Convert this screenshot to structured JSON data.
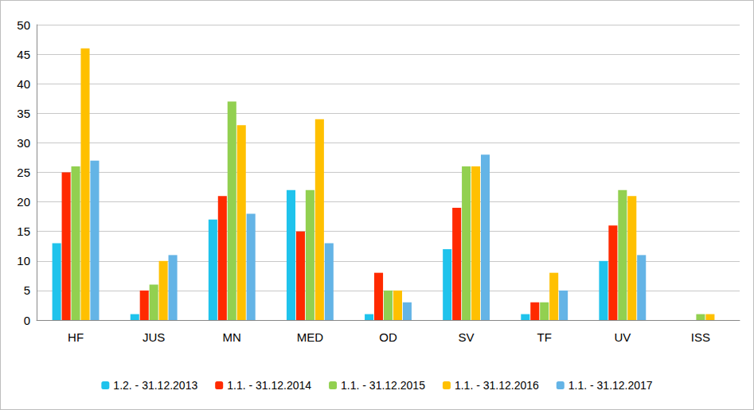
{
  "chart_data": {
    "type": "bar",
    "categories": [
      "HF",
      "JUS",
      "MN",
      "MED",
      "OD",
      "SV",
      "TF",
      "UV",
      "ISS"
    ],
    "series": [
      {
        "name": "1.2. - 31.12.2013",
        "color": "#1fc3ec",
        "values": [
          13,
          1,
          17,
          22,
          1,
          12,
          1,
          10,
          0
        ]
      },
      {
        "name": "1.1. - 31.12.2014",
        "color": "#ff2a00",
        "values": [
          25,
          5,
          21,
          15,
          8,
          19,
          3,
          16,
          0
        ]
      },
      {
        "name": "1.1. - 31.12.2015",
        "color": "#92d050",
        "values": [
          26,
          6,
          37,
          22,
          5,
          26,
          3,
          22,
          1
        ]
      },
      {
        "name": "1.1. - 31.12.2016",
        "color": "#ffc000",
        "values": [
          46,
          10,
          33,
          34,
          5,
          26,
          8,
          21,
          1
        ]
      },
      {
        "name": "1.1. - 31.12.2017",
        "color": "#64b4e6",
        "values": [
          27,
          11,
          18,
          13,
          3,
          28,
          5,
          11,
          0
        ]
      }
    ],
    "ylim": [
      0,
      50
    ],
    "yticks": [
      0,
      5,
      10,
      15,
      20,
      25,
      30,
      35,
      40,
      45,
      50
    ],
    "grid": true,
    "legend": "bottom"
  }
}
